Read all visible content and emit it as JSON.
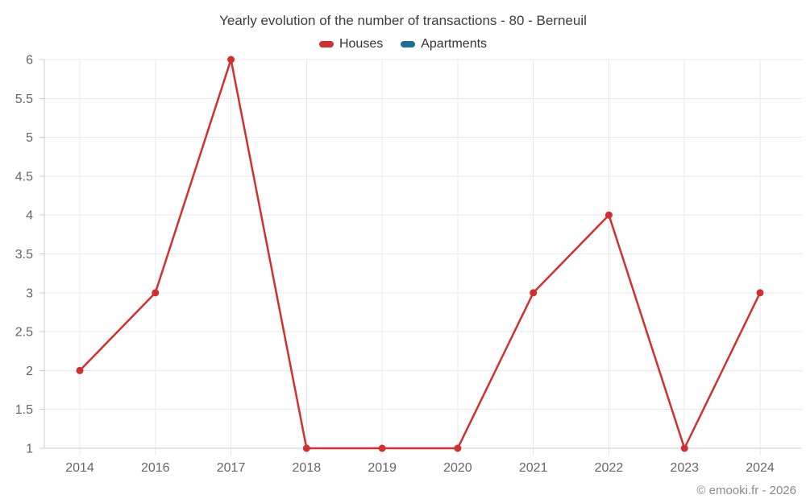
{
  "title": "Yearly evolution of the number of transactions - 80 - Berneuil",
  "watermark": "© emooki.fr - 2026",
  "colors": {
    "houses": "#d32f2f",
    "apartments": "#1a6f9c",
    "grid": "#e8e8e8",
    "axis": "#cccccc",
    "axis_label": "#666666",
    "title_text": "#3d3d3d",
    "legend_text": "#333333",
    "watermark_text": "#8a8a8a",
    "background": "#ffffff"
  },
  "chart_data": {
    "type": "line",
    "title": "Yearly evolution of the number of transactions - 80 - Berneuil",
    "categories": [
      "2014",
      "2016",
      "2017",
      "2018",
      "2019",
      "2020",
      "2021",
      "2022",
      "2023",
      "2024"
    ],
    "series": [
      {
        "name": "Houses",
        "color": "#d32f2f",
        "values": [
          2,
          3,
          6,
          1,
          1,
          1,
          3,
          4,
          1,
          3
        ]
      },
      {
        "name": "Apartments",
        "color": "#1a6f9c",
        "values": []
      }
    ],
    "xlabel": "",
    "ylabel": "",
    "ylim": [
      1,
      6
    ],
    "ytick_step": 0.5,
    "grid": true,
    "legend_position": "top",
    "markers": true
  }
}
